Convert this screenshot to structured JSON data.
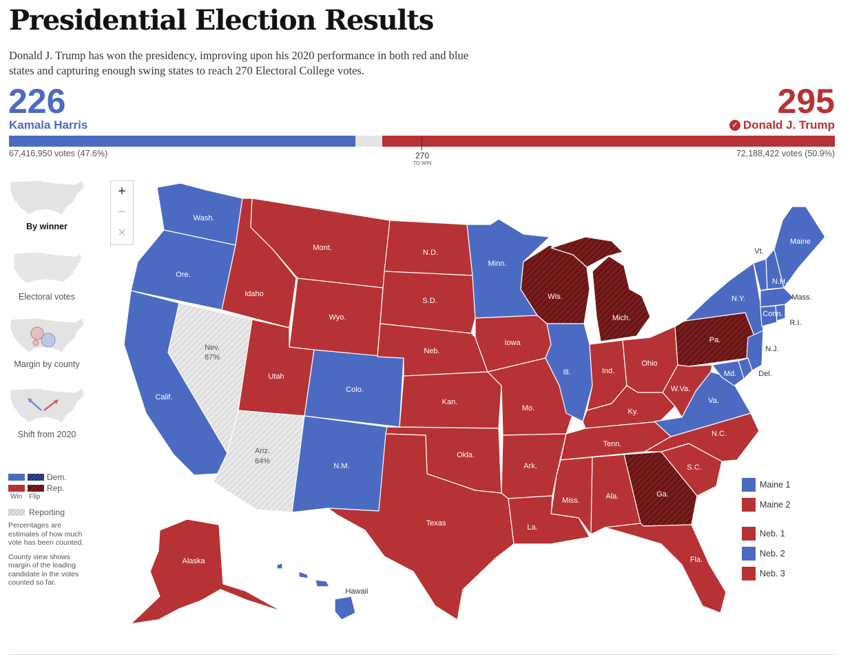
{
  "title": "Presidential Election Results",
  "intro": "Donald J. Trump has won the presidency, improving upon his 2020 performance in both red and blue states and capturing enough swing states to reach 270 Electoral College votes.",
  "colors": {
    "dem": "#4b6ac2",
    "rep": "#b73234",
    "rep_flip": "#7a1c1c",
    "reporting": "#dddddd"
  },
  "dem": {
    "candidate": "Kamala Harris",
    "electoral_votes": "226",
    "popular_votes": "67,416,950 votes (47.6%)"
  },
  "rep": {
    "candidate": "Donald J. Trump",
    "electoral_votes": "295",
    "popular_votes": "72,188,422 votes (50.9%)",
    "winner_icon": "check-circle-icon"
  },
  "threshold": {
    "value": "270",
    "label": "TO WIN"
  },
  "views": [
    {
      "label": "By winner",
      "active": true
    },
    {
      "label": "Electoral votes",
      "active": false
    },
    {
      "label": "Margin by county",
      "active": false
    },
    {
      "label": "Shift from 2020",
      "active": false
    }
  ],
  "zoom": {
    "in": "+",
    "out": "−",
    "reset": "×"
  },
  "legend": {
    "dem": "Dem.",
    "rep": "Rep.",
    "win": "Win",
    "flip": "Flip",
    "reporting": "Reporting"
  },
  "notes": [
    "Percentages are estimates of how much vote has been counted.",
    "County view shows margin of the leading candidate in the votes counted so far."
  ],
  "states": {
    "wash": "Wash.",
    "ore": "Ore.",
    "calif": "Calif.",
    "nev": "Nev.",
    "nev_pct": "87%",
    "idaho": "Idaho",
    "mont": "Mont.",
    "wyo": "Wyo.",
    "utah": "Utah",
    "colo": "Colo.",
    "ariz": "Ariz.",
    "ariz_pct": "64%",
    "nm": "N.M.",
    "nd": "N.D.",
    "sd": "S.D.",
    "neb": "Neb.",
    "kan": "Kan.",
    "okla": "Okla.",
    "texas": "Texas",
    "minn": "Minn.",
    "iowa": "Iowa",
    "mo": "Mo.",
    "ark": "Ark.",
    "la": "La.",
    "wis": "Wis.",
    "ill": "Ill.",
    "mich": "Mich.",
    "ind": "Ind.",
    "ohio": "Ohio",
    "ky": "Ky.",
    "tenn": "Tenn.",
    "miss": "Miss.",
    "ala": "Ala.",
    "ga": "Ga.",
    "fla": "Fla.",
    "sc": "S.C.",
    "nc": "N.C.",
    "va": "Va.",
    "wva": "W.Va.",
    "pa": "Pa.",
    "ny": "N.Y.",
    "nj": "N.J.",
    "del": "Del.",
    "md": "Md.",
    "vt": "Vt.",
    "nh": "N.H.",
    "maine": "Maine",
    "mass": "Mass.",
    "conn": "Conn.",
    "ri": "R.I.",
    "alaska": "Alaska",
    "hawaii": "Hawaii"
  },
  "districts": [
    {
      "label": "Maine 1",
      "party": "dem"
    },
    {
      "label": "Maine 2",
      "party": "rep"
    },
    {
      "label": "Neb. 1",
      "party": "rep"
    },
    {
      "label": "Neb. 2",
      "party": "dem"
    },
    {
      "label": "Neb. 3",
      "party": "rep"
    }
  ]
}
